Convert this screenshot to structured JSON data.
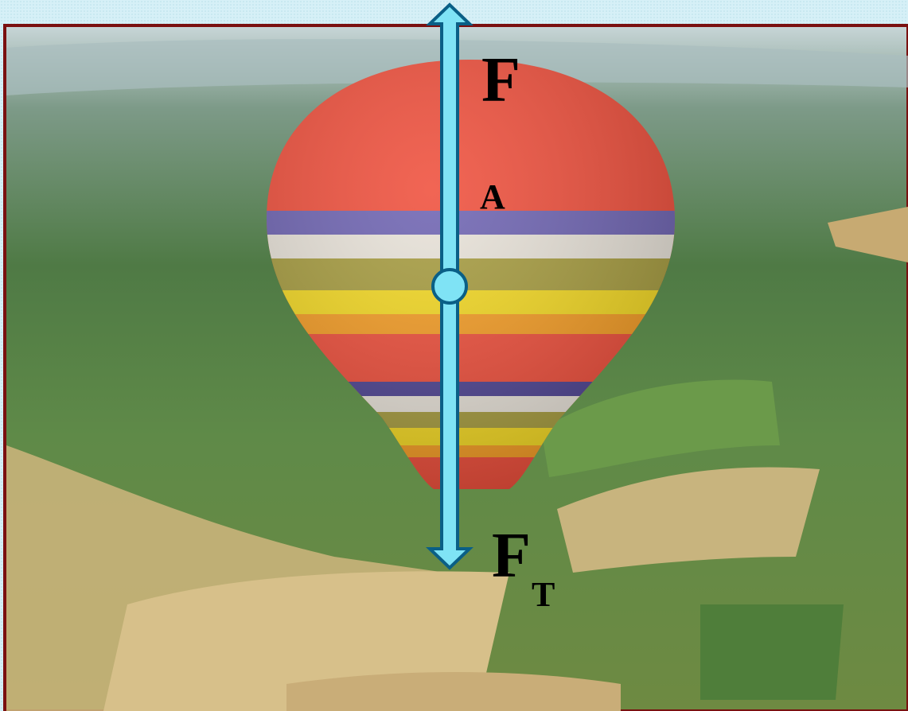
{
  "forces": [
    {
      "symbol": "F",
      "subscript": "A"
    },
    {
      "symbol": "F",
      "subscript": "T"
    }
  ]
}
